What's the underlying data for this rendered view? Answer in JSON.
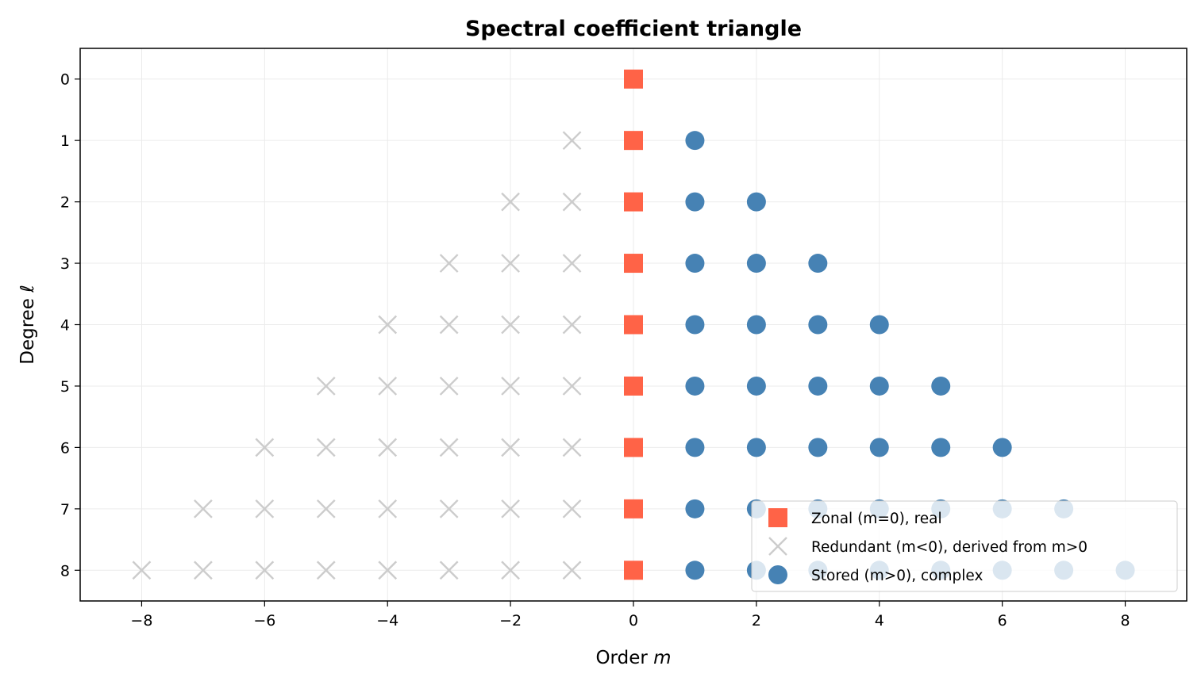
{
  "chart_data": {
    "type": "scatter",
    "title": "Spectral coefficient triangle",
    "xlabel_prefix": "Order ",
    "xlabel_var": "m",
    "ylabel_prefix": "Degree ",
    "ylabel_var": "ℓ",
    "xlim": [
      -9,
      9
    ],
    "ylim": [
      8.5,
      -0.5
    ],
    "y_inverted": true,
    "xticks": [
      -8,
      -6,
      -4,
      -2,
      0,
      2,
      4,
      6,
      8
    ],
    "xtick_labels": [
      "−8",
      "−6",
      "−4",
      "−2",
      "0",
      "2",
      "4",
      "6",
      "8"
    ],
    "yticks": [
      0,
      1,
      2,
      3,
      4,
      5,
      6,
      7,
      8
    ],
    "ytick_labels": [
      "0",
      "1",
      "2",
      "3",
      "4",
      "5",
      "6",
      "7",
      "8"
    ],
    "grid": true,
    "legend_position": "lower-right",
    "lmax": 8,
    "series": [
      {
        "name": "Zonal (m=0), real",
        "marker": "square",
        "color": "#ff6347",
        "points": [
          [
            0,
            0
          ],
          [
            0,
            1
          ],
          [
            0,
            2
          ],
          [
            0,
            3
          ],
          [
            0,
            4
          ],
          [
            0,
            5
          ],
          [
            0,
            6
          ],
          [
            0,
            7
          ],
          [
            0,
            8
          ]
        ]
      },
      {
        "name": "Redundant (m<0), derived from m>0",
        "marker": "x",
        "color": "#cccccc",
        "points": [
          [
            -1,
            1
          ],
          [
            -2,
            2
          ],
          [
            -1,
            2
          ],
          [
            -3,
            3
          ],
          [
            -2,
            3
          ],
          [
            -1,
            3
          ],
          [
            -4,
            4
          ],
          [
            -3,
            4
          ],
          [
            -2,
            4
          ],
          [
            -1,
            4
          ],
          [
            -5,
            5
          ],
          [
            -4,
            5
          ],
          [
            -3,
            5
          ],
          [
            -2,
            5
          ],
          [
            -1,
            5
          ],
          [
            -6,
            6
          ],
          [
            -5,
            6
          ],
          [
            -4,
            6
          ],
          [
            -3,
            6
          ],
          [
            -2,
            6
          ],
          [
            -1,
            6
          ],
          [
            -7,
            7
          ],
          [
            -6,
            7
          ],
          [
            -5,
            7
          ],
          [
            -4,
            7
          ],
          [
            -3,
            7
          ],
          [
            -2,
            7
          ],
          [
            -1,
            7
          ],
          [
            -8,
            8
          ],
          [
            -7,
            8
          ],
          [
            -6,
            8
          ],
          [
            -5,
            8
          ],
          [
            -4,
            8
          ],
          [
            -3,
            8
          ],
          [
            -2,
            8
          ],
          [
            -1,
            8
          ]
        ]
      },
      {
        "name": "Stored (m>0), complex",
        "marker": "circle",
        "color": "#4682b4",
        "points": [
          [
            1,
            1
          ],
          [
            1,
            2
          ],
          [
            2,
            2
          ],
          [
            1,
            3
          ],
          [
            2,
            3
          ],
          [
            3,
            3
          ],
          [
            1,
            4
          ],
          [
            2,
            4
          ],
          [
            3,
            4
          ],
          [
            4,
            4
          ],
          [
            1,
            5
          ],
          [
            2,
            5
          ],
          [
            3,
            5
          ],
          [
            4,
            5
          ],
          [
            5,
            5
          ],
          [
            1,
            6
          ],
          [
            2,
            6
          ],
          [
            3,
            6
          ],
          [
            4,
            6
          ],
          [
            5,
            6
          ],
          [
            6,
            6
          ],
          [
            1,
            7
          ],
          [
            2,
            7
          ],
          [
            3,
            7
          ],
          [
            4,
            7
          ],
          [
            5,
            7
          ],
          [
            6,
            7
          ],
          [
            7,
            7
          ],
          [
            1,
            8
          ],
          [
            2,
            8
          ],
          [
            3,
            8
          ],
          [
            4,
            8
          ],
          [
            5,
            8
          ],
          [
            6,
            8
          ],
          [
            7,
            8
          ],
          [
            8,
            8
          ]
        ]
      }
    ]
  }
}
